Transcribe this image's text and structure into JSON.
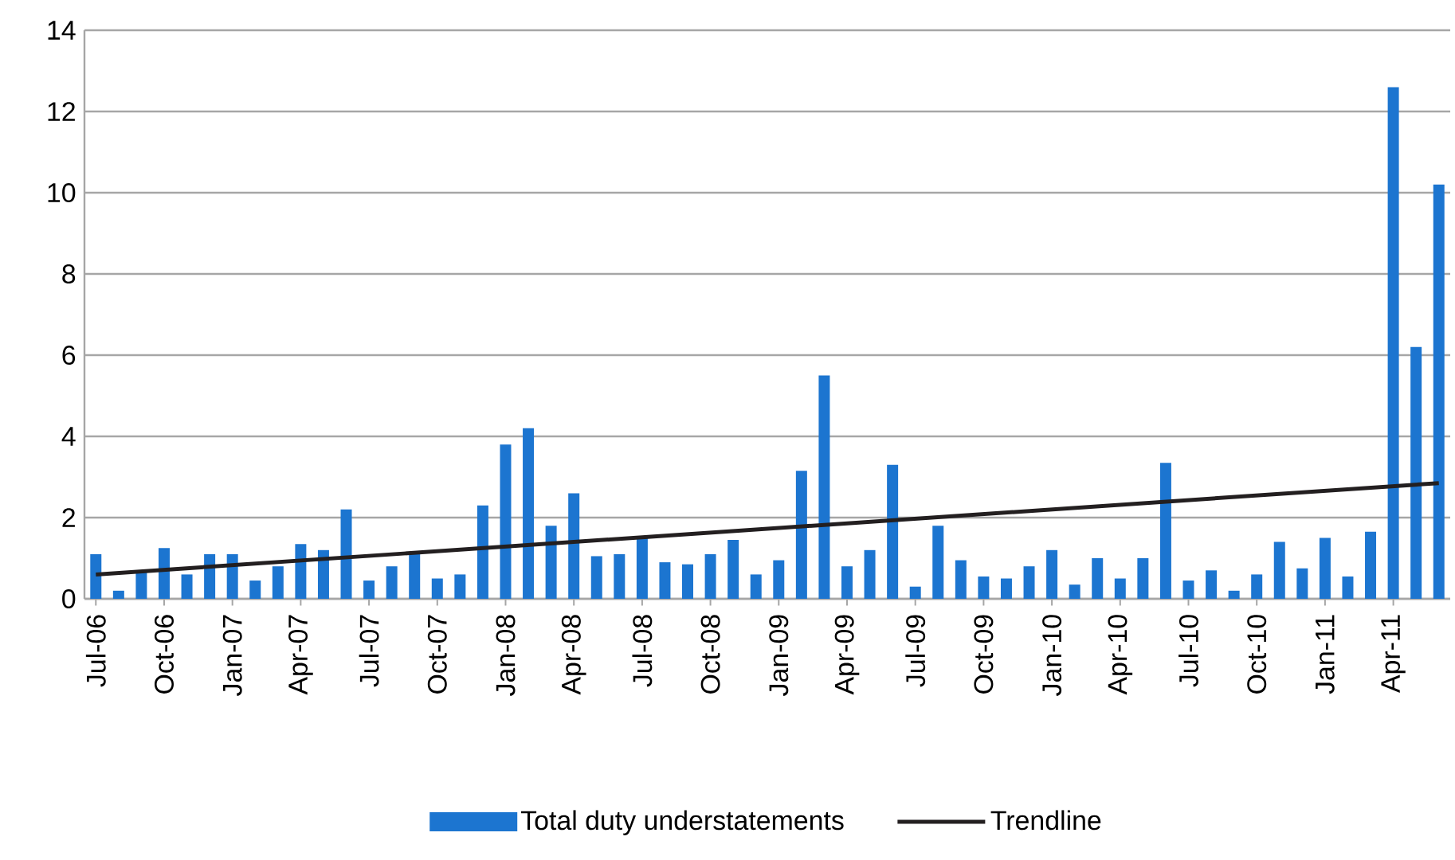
{
  "chart_data": {
    "type": "bar",
    "categories": [
      "Jul-06",
      null,
      null,
      "Oct-06",
      null,
      null,
      "Jan-07",
      null,
      null,
      "Apr-07",
      null,
      null,
      "Jul-07",
      null,
      null,
      "Oct-07",
      null,
      null,
      "Jan-08",
      null,
      null,
      "Apr-08",
      null,
      null,
      "Jul-08",
      null,
      null,
      "Oct-08",
      null,
      null,
      "Jan-09",
      null,
      null,
      "Apr-09",
      null,
      null,
      "Jul-09",
      null,
      null,
      "Oct-09",
      null,
      null,
      "Jan-10",
      null,
      null,
      "Apr-10",
      null,
      null,
      "Jul-10",
      null,
      null,
      "Oct-10",
      null,
      null,
      "Jan-11",
      null,
      null,
      "Apr-11",
      null,
      null
    ],
    "series": [
      {
        "name": "Total duty understatements",
        "color": "#1c75d0",
        "values": [
          1.1,
          0.2,
          0.7,
          1.25,
          0.6,
          1.1,
          1.1,
          0.45,
          0.8,
          1.35,
          1.2,
          2.2,
          0.45,
          0.8,
          1.1,
          0.5,
          0.6,
          2.3,
          3.8,
          4.2,
          1.8,
          2.6,
          1.05,
          1.1,
          1.5,
          0.9,
          0.85,
          1.1,
          1.45,
          0.6,
          0.95,
          3.15,
          5.5,
          0.8,
          1.2,
          3.3,
          0.3,
          1.8,
          0.95,
          0.55,
          0.5,
          0.8,
          1.2,
          0.35,
          1.0,
          0.5,
          1.0,
          3.35,
          0.45,
          0.7,
          0.2,
          0.6,
          1.4,
          0.75,
          1.5,
          0.55,
          1.65,
          12.6,
          6.2,
          10.2
        ]
      },
      {
        "name": "Trendline",
        "type": "line",
        "color": "#231f20",
        "values": [
          0.6,
          null,
          null,
          null,
          null,
          null,
          null,
          null,
          null,
          null,
          null,
          null,
          null,
          null,
          null,
          null,
          null,
          null,
          null,
          null,
          null,
          null,
          null,
          null,
          null,
          null,
          null,
          null,
          null,
          null,
          null,
          null,
          null,
          null,
          null,
          null,
          null,
          null,
          null,
          null,
          null,
          null,
          null,
          null,
          null,
          null,
          null,
          null,
          null,
          null,
          null,
          null,
          null,
          null,
          null,
          null,
          null,
          null,
          null,
          2.85
        ]
      }
    ],
    "ylim": [
      0,
      14
    ],
    "yticks": [
      0,
      2,
      4,
      6,
      8,
      10,
      12,
      14
    ],
    "grid": "y",
    "legend": "bottom"
  }
}
